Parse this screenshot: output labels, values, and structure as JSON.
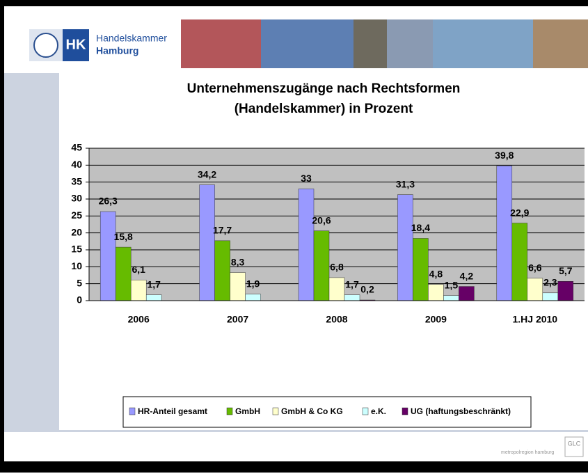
{
  "header": {
    "logo_short": "HK",
    "logo_line1": "Handelskammer",
    "logo_line2": "Hamburg"
  },
  "footer": {
    "partner": "metropolregion hamburg",
    "badge": "GLC"
  },
  "chart_data": {
    "type": "bar",
    "title": [
      "Unternehmenszugänge nach Rechtsformen",
      "(Handelskammer) in Prozent"
    ],
    "categories": [
      "2006",
      "2007",
      "2008",
      "2009",
      "1.HJ 2010"
    ],
    "series": [
      {
        "name": "HR-Anteil gesamt",
        "color": "#9999ff",
        "values": [
          26.3,
          34.2,
          33,
          31.3,
          39.8
        ],
        "value_labels": [
          "26,3",
          "34,2",
          "33",
          "31,3",
          "39,8"
        ]
      },
      {
        "name": "GmbH",
        "color": "#66bb00",
        "values": [
          15.8,
          17.7,
          20.6,
          18.4,
          22.9
        ],
        "value_labels": [
          "15,8",
          "17,7",
          "20,6",
          "18,4",
          "22,9"
        ]
      },
      {
        "name": "GmbH & Co KG",
        "color": "#ffffcc",
        "values": [
          6.1,
          8.3,
          6.8,
          4.8,
          6.6
        ],
        "value_labels": [
          "6,1",
          "8,3",
          "6,8",
          "4,8",
          "6,6"
        ]
      },
      {
        "name": "e.K.",
        "color": "#ccffff",
        "values": [
          1.7,
          1.9,
          1.7,
          1.5,
          2.3
        ],
        "value_labels": [
          "1,7",
          "1,9",
          "1,7",
          "1,5",
          "2,3"
        ]
      },
      {
        "name": "UG (haftungsbeschränkt)",
        "color": "#660066",
        "values": [
          null,
          null,
          0.2,
          4.2,
          5.7
        ],
        "value_labels": [
          null,
          null,
          "0,2",
          "4,2",
          "5,7"
        ]
      }
    ],
    "ylim": [
      0,
      45
    ],
    "yticks": [
      0,
      5,
      10,
      15,
      20,
      25,
      30,
      35,
      40,
      45
    ],
    "grid": true,
    "legend": "bottom"
  }
}
